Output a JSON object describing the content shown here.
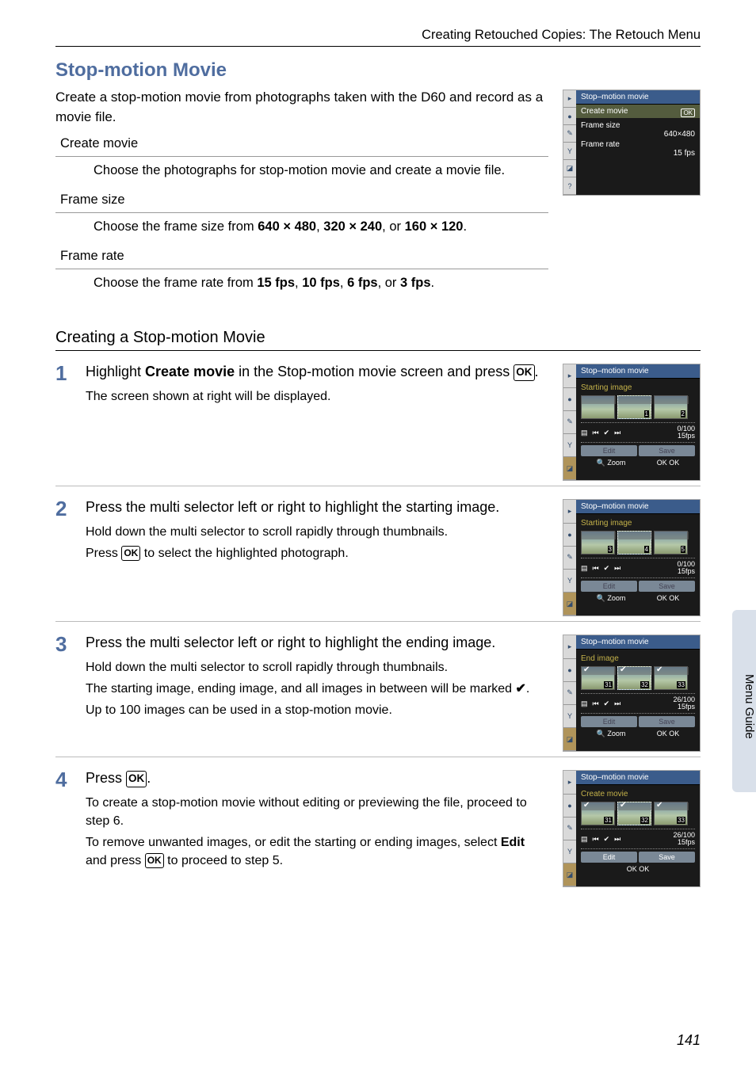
{
  "header": {
    "breadcrumb": "Creating Retouched Copies: The Retouch Menu"
  },
  "title": "Stop-motion Movie",
  "intro": "Create a stop-motion movie from photographs taken with the D60 and record as a movie file.",
  "definitions": [
    {
      "term": "Create movie",
      "def": "Choose the photographs for stop-motion movie and create a movie file."
    },
    {
      "term": "Frame size",
      "def_html": "Choose the frame size from <b>640 × 480</b>, <b>320 × 240</b>, or <b>160 × 120</b>."
    },
    {
      "term": "Frame rate",
      "def_html": "Choose the frame rate from <b>15 fps</b>, <b>10 fps</b>, <b>6 fps</b>, or <b>3 fps</b>."
    }
  ],
  "subheading": "Creating a Stop-motion Movie",
  "steps": [
    {
      "n": "1",
      "title_html": "Highlight <b>Create movie</b> in the Stop-motion movie screen and press <span class='ok-symbol'>OK</span>.",
      "desc": [
        "The screen shown at right will be displayed."
      ],
      "lcd": "starting1"
    },
    {
      "n": "2",
      "title_html": "Press the multi selector left or right to highlight the starting image.",
      "desc": [
        "Hold down the multi selector to scroll rapidly through thumbnails.",
        "Press <span class='ok-symbol'>OK</span> to select the highlighted photograph."
      ],
      "lcd": "starting2"
    },
    {
      "n": "3",
      "title_html": "Press the multi selector left or right to highlight the ending image.",
      "desc": [
        "Hold down the multi selector to scroll rapidly through thumbnails.",
        "The starting image, ending image, and all images in between will be marked <span class='check'>✔</span>.",
        "Up to 100 images can be used in a stop-motion movie."
      ],
      "lcd": "ending"
    },
    {
      "n": "4",
      "title_html": "Press <span class='ok-symbol'>OK</span>.",
      "desc": [
        "To create a stop-motion movie without editing or previewing the file, proceed to step 6.",
        "To remove unwanted images, or edit the starting or ending images, select <b>Edit</b> and press <span class='ok-symbol'>OK</span> to proceed to step 5."
      ],
      "lcd": "create"
    }
  ],
  "lcd_menu": {
    "title": "Stop–motion movie",
    "rows": [
      {
        "label": "Create movie",
        "value": "",
        "ok": true
      },
      {
        "label": "Frame size",
        "value": "640×480"
      },
      {
        "label": "Frame rate",
        "value": "15 fps"
      }
    ]
  },
  "lcd_screens": {
    "starting1": {
      "title": "Stop–motion movie",
      "subtitle": "Starting image",
      "thumbs": [
        "",
        "1",
        "2"
      ],
      "counter": "0/100",
      "fps": "15fps",
      "buttons": [
        "Edit",
        "Save"
      ],
      "foot": [
        "🔍 Zoom",
        "OK OK"
      ]
    },
    "starting2": {
      "title": "Stop–motion movie",
      "subtitle": "Starting image",
      "thumbs": [
        "3",
        "4",
        "5"
      ],
      "counter": "0/100",
      "fps": "15fps",
      "buttons": [
        "Edit",
        "Save"
      ],
      "foot": [
        "🔍 Zoom",
        "OK OK"
      ]
    },
    "ending": {
      "title": "Stop–motion movie",
      "subtitle": "End image",
      "thumbs": [
        "31",
        "32",
        "33"
      ],
      "counter": "26/100",
      "fps": "15fps",
      "buttons": [
        "Edit",
        "Save"
      ],
      "foot": [
        "🔍 Zoom",
        "OK OK"
      ]
    },
    "create": {
      "title": "Stop–motion movie",
      "subtitle": "Create movie",
      "thumbs": [
        "31",
        "32",
        "33"
      ],
      "counter": "26/100",
      "fps": "15fps",
      "buttons_active": [
        "Edit",
        "Save"
      ],
      "foot": [
        "OK OK"
      ]
    }
  },
  "side_tab": "Menu Guide",
  "page_number": "141",
  "colors": {
    "accent": "#4f6d9f",
    "lcd_title_bg": "#3b5c8b",
    "side_tab_bg": "#d9e0ea"
  }
}
